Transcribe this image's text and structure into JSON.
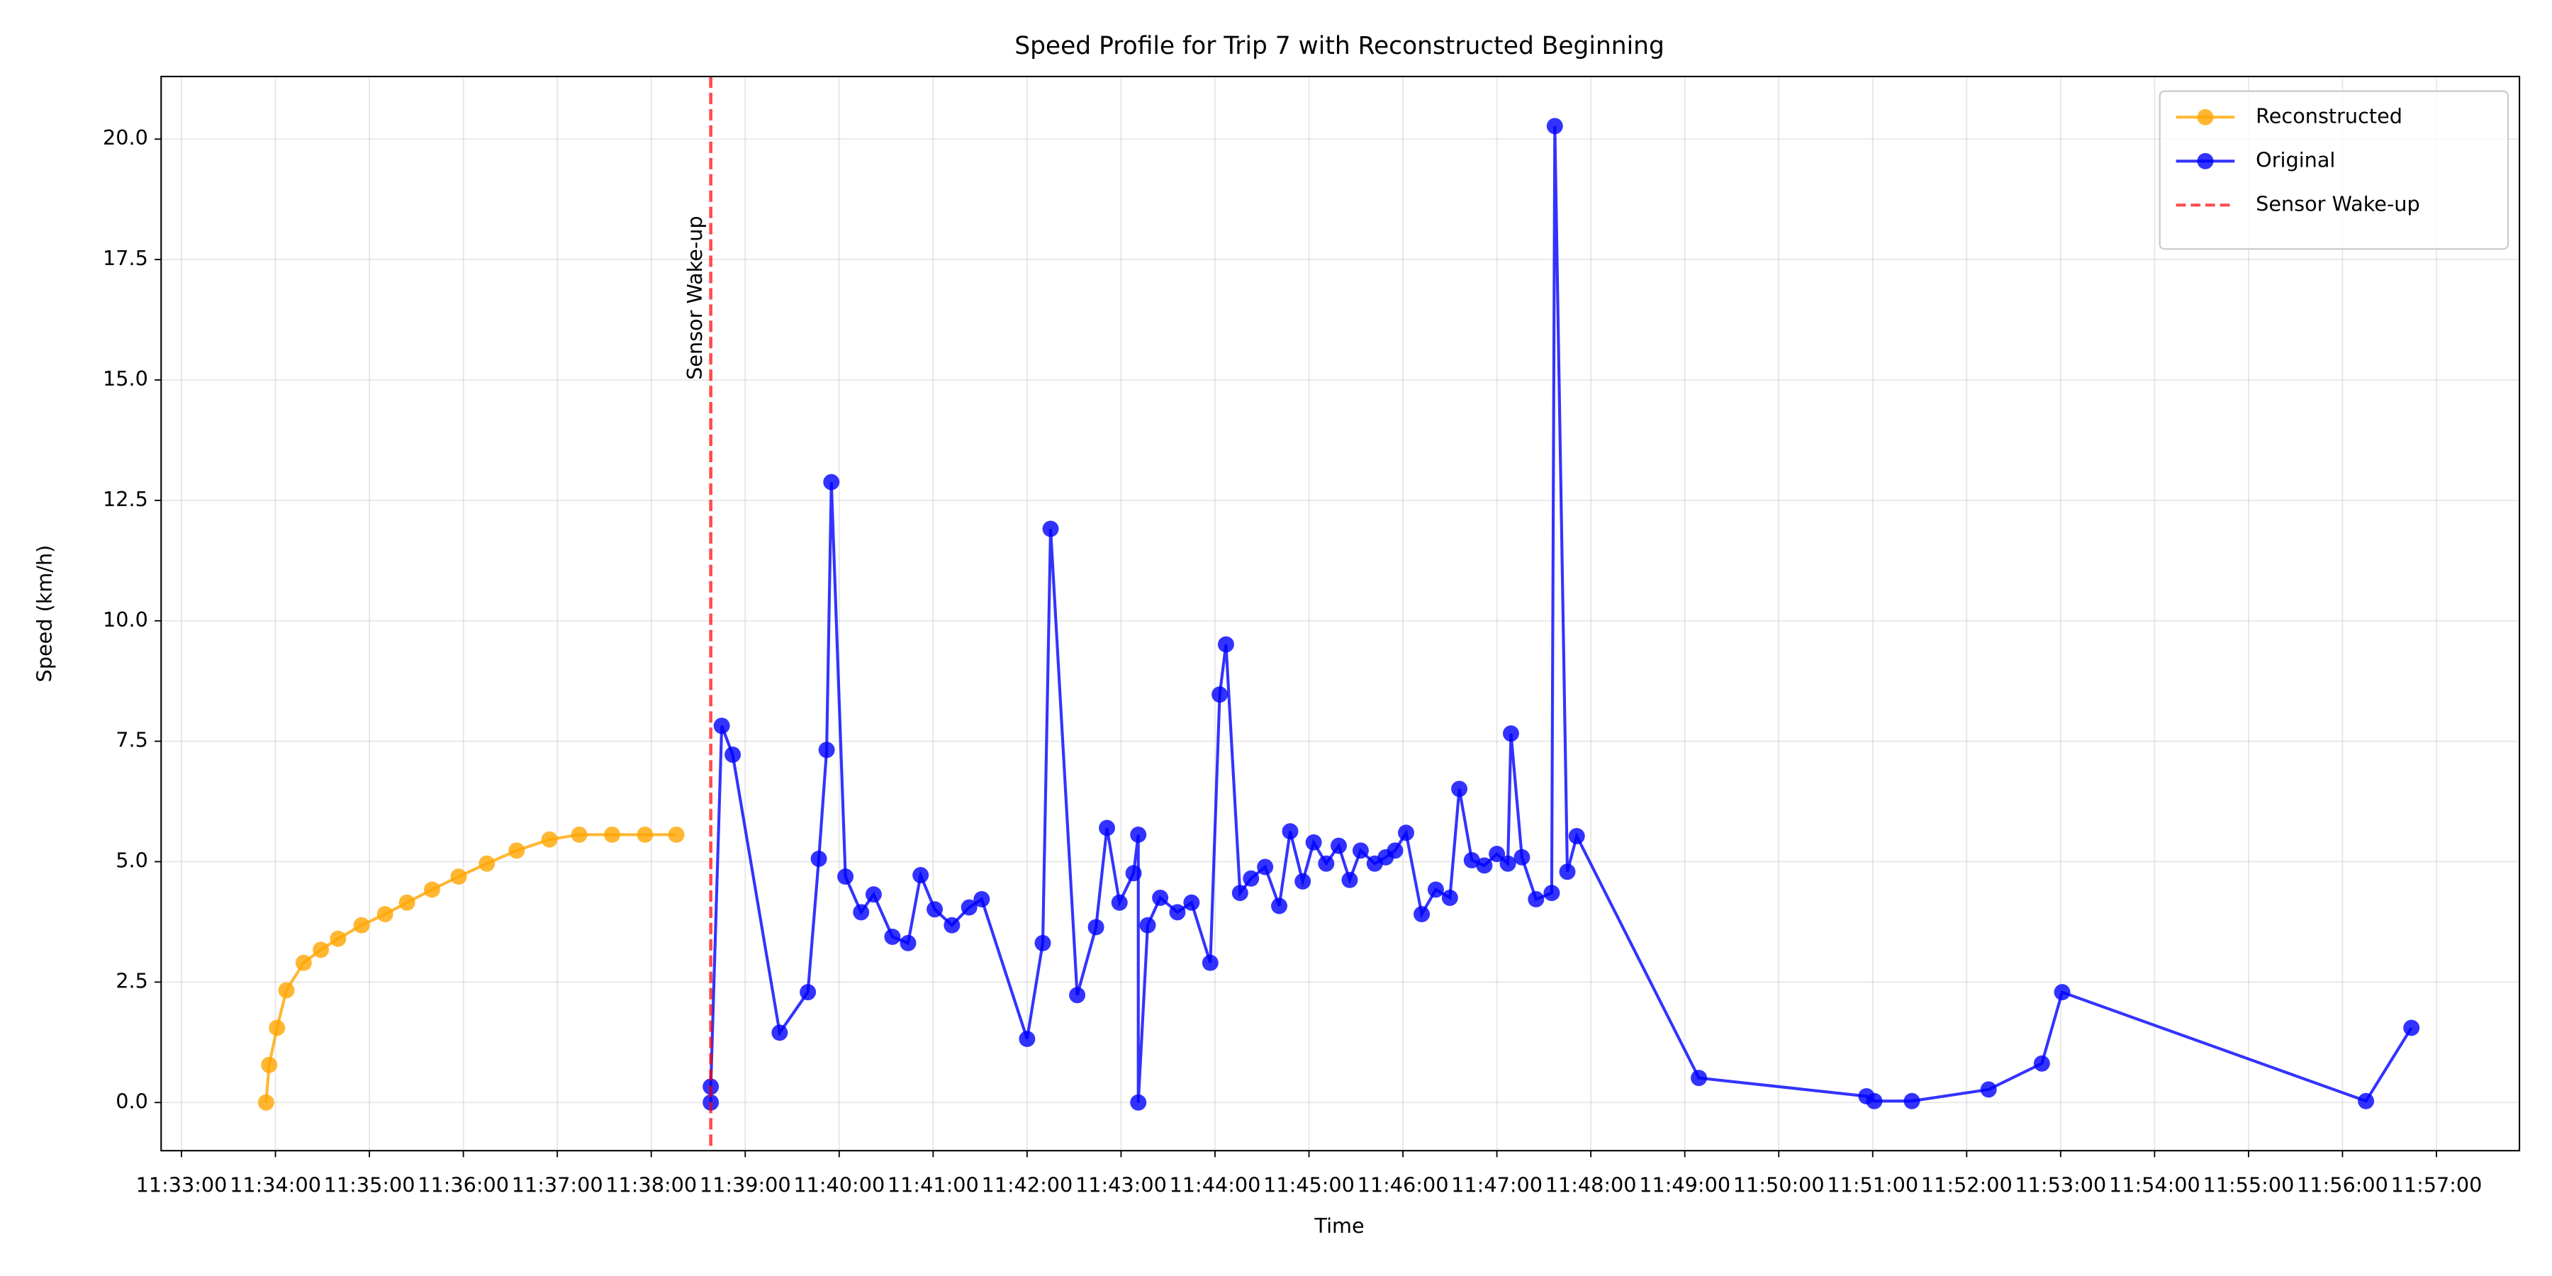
{
  "chart_data": {
    "type": "line",
    "title": "Speed Profile for Trip 7 with Reconstructed Beginning",
    "x_label": "Time",
    "y_label": "Speed (km/h)",
    "xlim": [
      "11:32:47",
      "11:57:53"
    ],
    "ylim": [
      -1.0,
      21.3
    ],
    "xticks": [
      "11:33:00",
      "11:34:00",
      "11:35:00",
      "11:36:00",
      "11:37:00",
      "11:38:00",
      "11:39:00",
      "11:40:00",
      "11:41:00",
      "11:42:00",
      "11:43:00",
      "11:44:00",
      "11:45:00",
      "11:46:00",
      "11:47:00",
      "11:48:00",
      "11:49:00",
      "11:50:00",
      "11:51:00",
      "11:52:00",
      "11:53:00",
      "11:54:00",
      "11:55:00",
      "11:56:00",
      "11:57:00"
    ],
    "yticks": [
      {
        "value": 0,
        "label": "0.0"
      },
      2.5,
      {
        "value": 5,
        "label": "5.0"
      },
      7.5,
      {
        "value": 10,
        "label": "10.0"
      },
      12.5,
      {
        "value": 15,
        "label": "15.0"
      },
      17.5,
      {
        "value": 20,
        "label": "20.0"
      }
    ],
    "grid": true,
    "legend": "upper right",
    "series": [
      {
        "name": "Reconstructed",
        "color": "#ffa500",
        "x": [
          "11:33:54",
          "11:33:56",
          "11:34:01",
          "11:34:07",
          "11:34:18",
          "11:34:29",
          "11:34:40",
          "11:34:55",
          "11:35:10",
          "11:35:24",
          "11:35:40",
          "11:35:57",
          "11:36:15",
          "11:36:34",
          "11:36:55",
          "11:37:14",
          "11:37:35",
          "11:37:56",
          "11:38:16"
        ],
        "values": [
          0.0,
          0.78,
          1.55,
          2.33,
          2.9,
          3.17,
          3.4,
          3.68,
          3.91,
          4.15,
          4.42,
          4.69,
          4.96,
          5.23,
          5.46,
          5.56,
          5.56,
          5.56,
          5.56
        ]
      },
      {
        "name": "Original",
        "color": "#0000ff",
        "x": [
          "11:38:38",
          "11:38:38",
          "11:38:45",
          "11:38:52",
          "11:39:22",
          "11:39:40",
          "11:39:47",
          "11:39:52",
          "11:39:55",
          "11:40:04",
          "11:40:14",
          "11:40:22",
          "11:40:34",
          "11:40:44",
          "11:40:52",
          "11:41:01",
          "11:41:12",
          "11:41:23",
          "11:41:31",
          "11:42:00",
          "11:42:10",
          "11:42:15",
          "11:42:32",
          "11:42:44",
          "11:42:51",
          "11:42:59",
          "11:43:08",
          "11:43:11",
          "11:43:11",
          "11:43:17",
          "11:43:25",
          "11:43:36",
          "11:43:45",
          "11:43:57",
          "11:44:03",
          "11:44:07",
          "11:44:16",
          "11:44:23",
          "11:44:32",
          "11:44:41",
          "11:44:48",
          "11:44:56",
          "11:45:03",
          "11:45:11",
          "11:45:19",
          "11:45:26",
          "11:45:33",
          "11:45:42",
          "11:45:49",
          "11:45:55",
          "11:46:02",
          "11:46:12",
          "11:46:21",
          "11:46:30",
          "11:46:36",
          "11:46:44",
          "11:46:52",
          "11:47:00",
          "11:47:07",
          "11:47:09",
          "11:47:16",
          "11:47:25",
          "11:47:35",
          "11:47:37",
          "11:47:45",
          "11:47:51",
          "11:49:09",
          "11:50:56",
          "11:51:01",
          "11:51:25",
          "11:52:14",
          "11:52:48",
          "11:53:01",
          "11:56:15",
          "11:56:44"
        ],
        "values": [
          0.0,
          0.33,
          7.82,
          7.22,
          1.45,
          2.29,
          5.06,
          7.32,
          12.88,
          4.69,
          3.95,
          4.32,
          3.44,
          3.31,
          4.72,
          4.01,
          3.68,
          4.05,
          4.22,
          1.32,
          3.31,
          11.91,
          2.23,
          3.64,
          5.7,
          4.15,
          4.76,
          5.56,
          0.0,
          3.68,
          4.25,
          3.95,
          4.15,
          2.9,
          8.47,
          9.51,
          4.35,
          4.65,
          4.89,
          4.08,
          5.63,
          4.59,
          5.4,
          4.96,
          5.33,
          4.62,
          5.23,
          4.96,
          5.09,
          5.23,
          5.6,
          3.91,
          4.42,
          4.25,
          6.51,
          5.03,
          4.92,
          5.16,
          4.96,
          7.66,
          5.09,
          4.22,
          4.35,
          20.27,
          4.79,
          5.53,
          0.51,
          0.13,
          0.03,
          0.03,
          0.27,
          0.81,
          2.29,
          0.03,
          1.55
        ]
      }
    ],
    "vline": {
      "name": "Sensor Wake-up",
      "x": "11:38:38",
      "color": "#ff0000",
      "annotation": "Sensor Wake-up"
    }
  }
}
